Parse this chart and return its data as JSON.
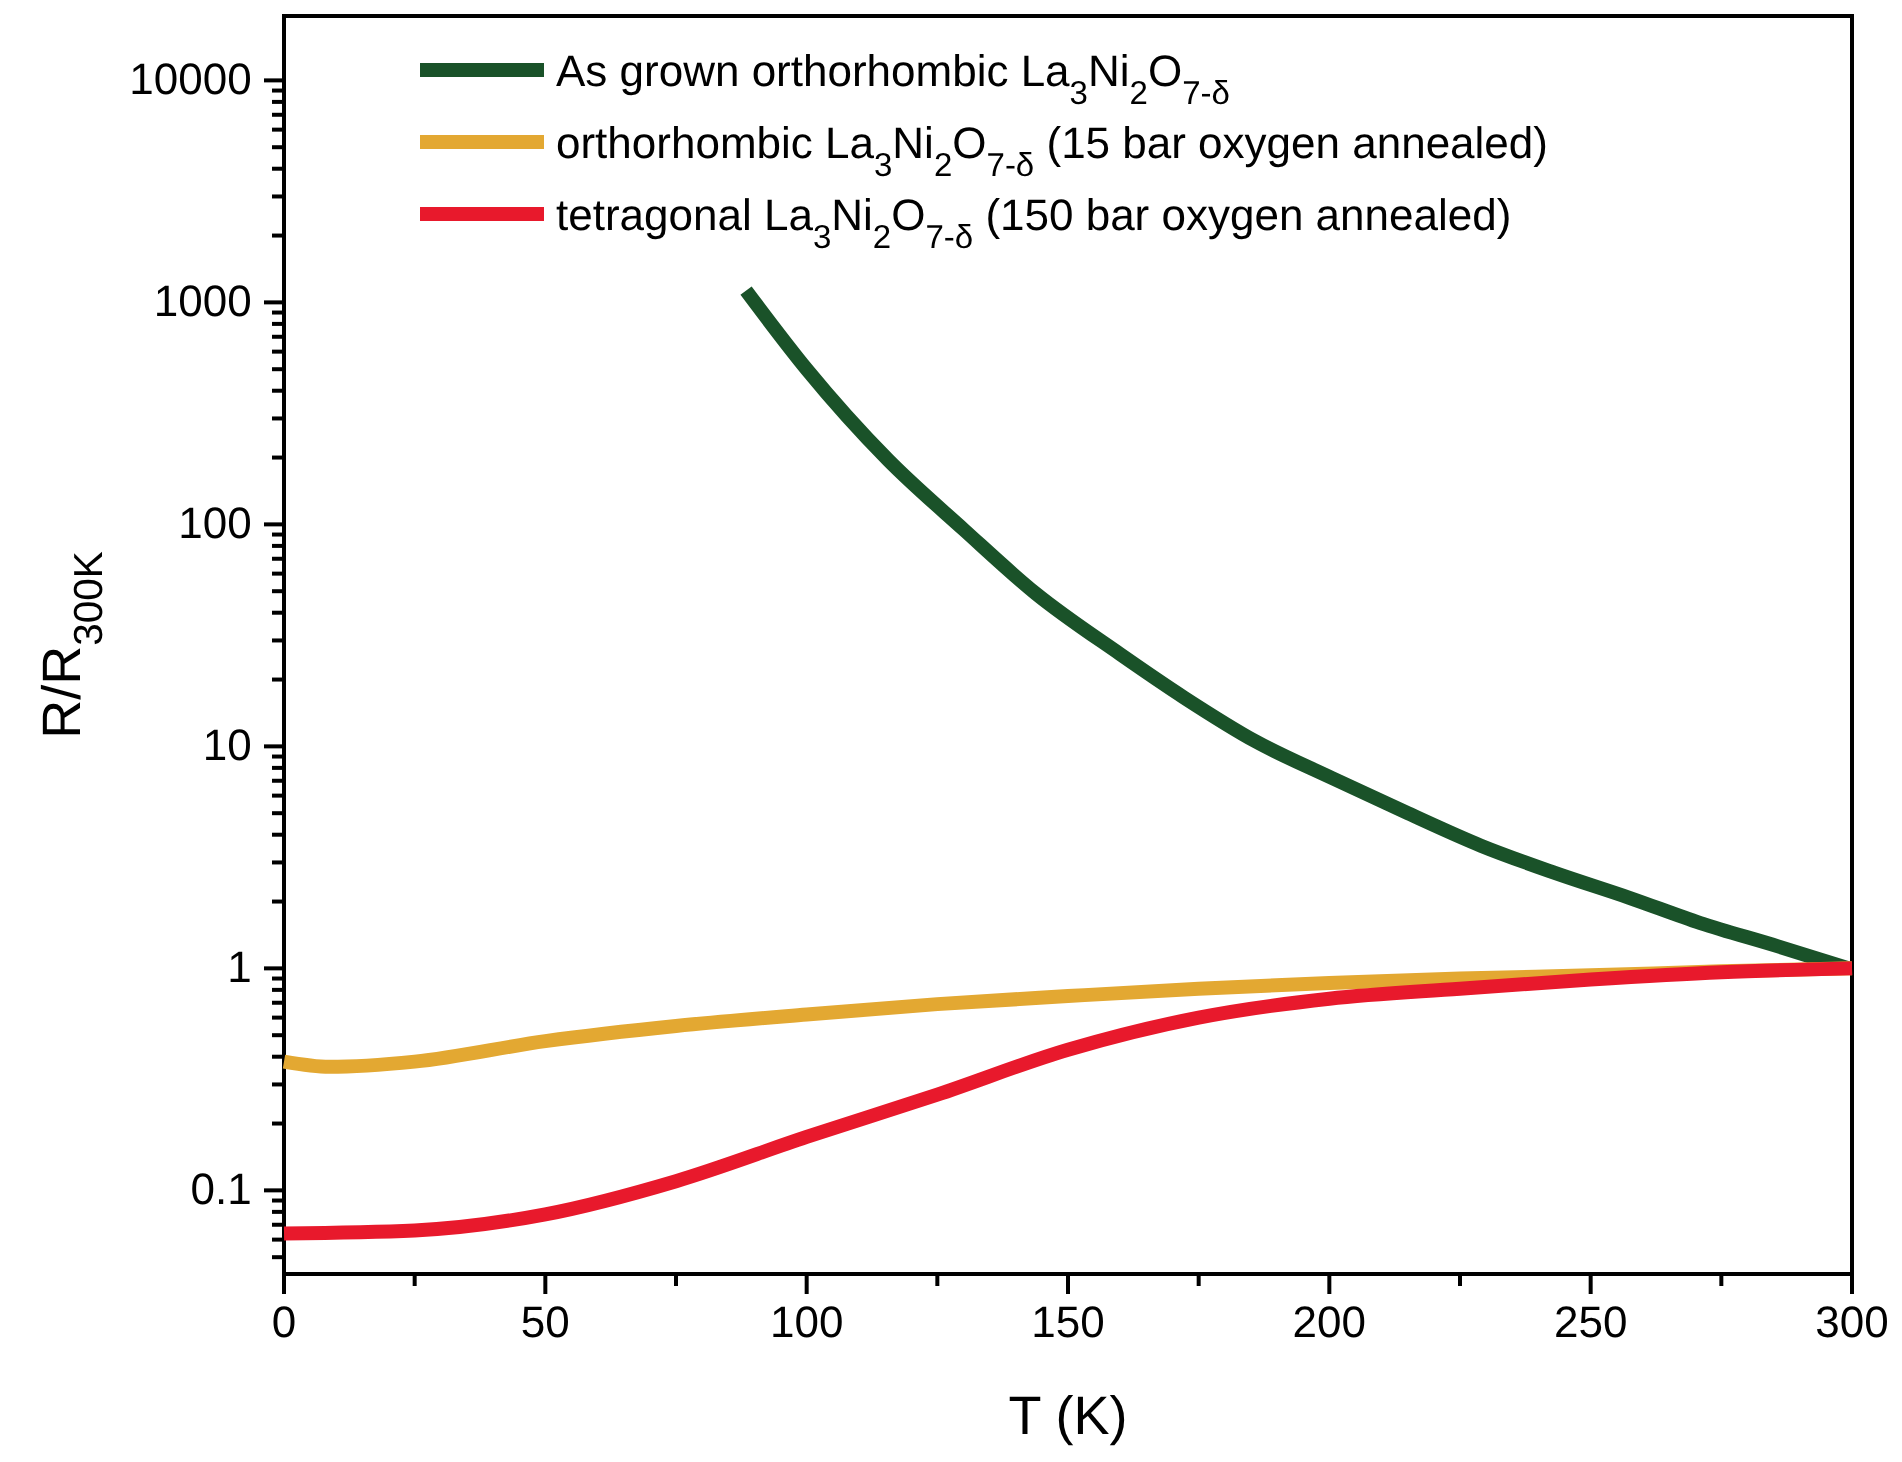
{
  "chart_data": {
    "type": "line",
    "xlabel": "T (K)",
    "ylabel": "R/R$_{300K}$",
    "log": "y",
    "xlim": [
      0,
      300
    ],
    "ylim": [
      0.042,
      19500
    ],
    "xticks": [
      0,
      {
        "value": 25,
        "label": null
      },
      50,
      {
        "value": 75,
        "label": null
      },
      100,
      {
        "value": 125,
        "label": null
      },
      150,
      {
        "value": 175,
        "label": null
      },
      200,
      {
        "value": 225,
        "label": null
      },
      250,
      {
        "value": 275,
        "label": null
      },
      300
    ],
    "yticks": [
      {
        "value": 0.05,
        "label": null
      },
      {
        "value": 0.06,
        "label": null
      },
      {
        "value": 0.07,
        "label": null
      },
      {
        "value": 0.08,
        "label": null
      },
      {
        "value": 0.09,
        "label": null
      },
      0.1,
      {
        "value": 0.2,
        "label": null
      },
      {
        "value": 0.3,
        "label": null
      },
      {
        "value": 0.4,
        "label": null
      },
      {
        "value": 0.5,
        "label": null
      },
      {
        "value": 0.6,
        "label": null
      },
      {
        "value": 0.7,
        "label": null
      },
      {
        "value": 0.8,
        "label": null
      },
      {
        "value": 0.9,
        "label": null
      },
      1,
      {
        "value": 2,
        "label": null
      },
      {
        "value": 3,
        "label": null
      },
      {
        "value": 4,
        "label": null
      },
      {
        "value": 5,
        "label": null
      },
      {
        "value": 6,
        "label": null
      },
      {
        "value": 7,
        "label": null
      },
      {
        "value": 8,
        "label": null
      },
      {
        "value": 9,
        "label": null
      },
      10,
      {
        "value": 20,
        "label": null
      },
      {
        "value": 30,
        "label": null
      },
      {
        "value": 40,
        "label": null
      },
      {
        "value": 50,
        "label": null
      },
      {
        "value": 60,
        "label": null
      },
      {
        "value": 70,
        "label": null
      },
      {
        "value": 80,
        "label": null
      },
      {
        "value": 90,
        "label": null
      },
      100,
      {
        "value": 200,
        "label": null
      },
      {
        "value": 300,
        "label": null
      },
      {
        "value": 400,
        "label": null
      },
      {
        "value": 500,
        "label": null
      },
      {
        "value": 600,
        "label": null
      },
      {
        "value": 700,
        "label": null
      },
      {
        "value": 800,
        "label": null
      },
      {
        "value": 900,
        "label": null
      },
      1000,
      {
        "value": 2000,
        "label": null
      },
      {
        "value": 3000,
        "label": null
      },
      {
        "value": 4000,
        "label": null
      },
      {
        "value": 5000,
        "label": null
      },
      {
        "value": 6000,
        "label": null
      },
      {
        "value": 7000,
        "label": null
      },
      {
        "value": 8000,
        "label": null
      },
      {
        "value": 9000,
        "label": null
      },
      10000
    ],
    "grid": false,
    "legend": "top left",
    "marker": "none",
    "line_style": "solid",
    "series": [
      {
        "name": "As grown orthorhombic La$_{3}$Ni$_{2}$O$_{7-δ}$",
        "color": "#1a5229",
        "x": [
          88.4,
          100,
          115.6,
          130,
          143.9,
          160,
          172.2,
          186,
          200.5,
          215,
          229,
          243,
          257.4,
          271,
          285.7,
          299.3
        ],
        "values": [
          1130,
          500,
          195,
          95,
          48.7,
          26,
          16.6,
          10.5,
          7.2,
          5,
          3.57,
          2.7,
          2.08,
          1.6,
          1.26,
          1
        ]
      },
      {
        "name": "orthorhombic La$_{3}$Ni$_{2}$O$_{7-δ}$ (15 bar oxygen annealed)",
        "color": "#e3a832",
        "x": [
          0,
          8.7,
          25,
          50,
          75,
          100,
          125,
          150,
          175,
          200,
          225,
          250,
          275,
          300
        ],
        "values": [
          0.38,
          0.36,
          0.38,
          0.47,
          0.55,
          0.62,
          0.69,
          0.75,
          0.81,
          0.86,
          0.9,
          0.93,
          0.97,
          1
        ]
      },
      {
        "name": "tetragonal La$_{3}$Ni$_{2}$O$_{7-δ}$ (150 bar oxygen annealed)",
        "color": "#e8192c",
        "x": [
          0,
          25,
          50,
          75,
          100,
          125,
          150,
          175,
          200,
          225,
          250,
          275,
          300
        ],
        "values": [
          0.064,
          0.066,
          0.078,
          0.11,
          0.174,
          0.27,
          0.43,
          0.6,
          0.73,
          0.81,
          0.89,
          0.96,
          1
        ]
      }
    ]
  }
}
